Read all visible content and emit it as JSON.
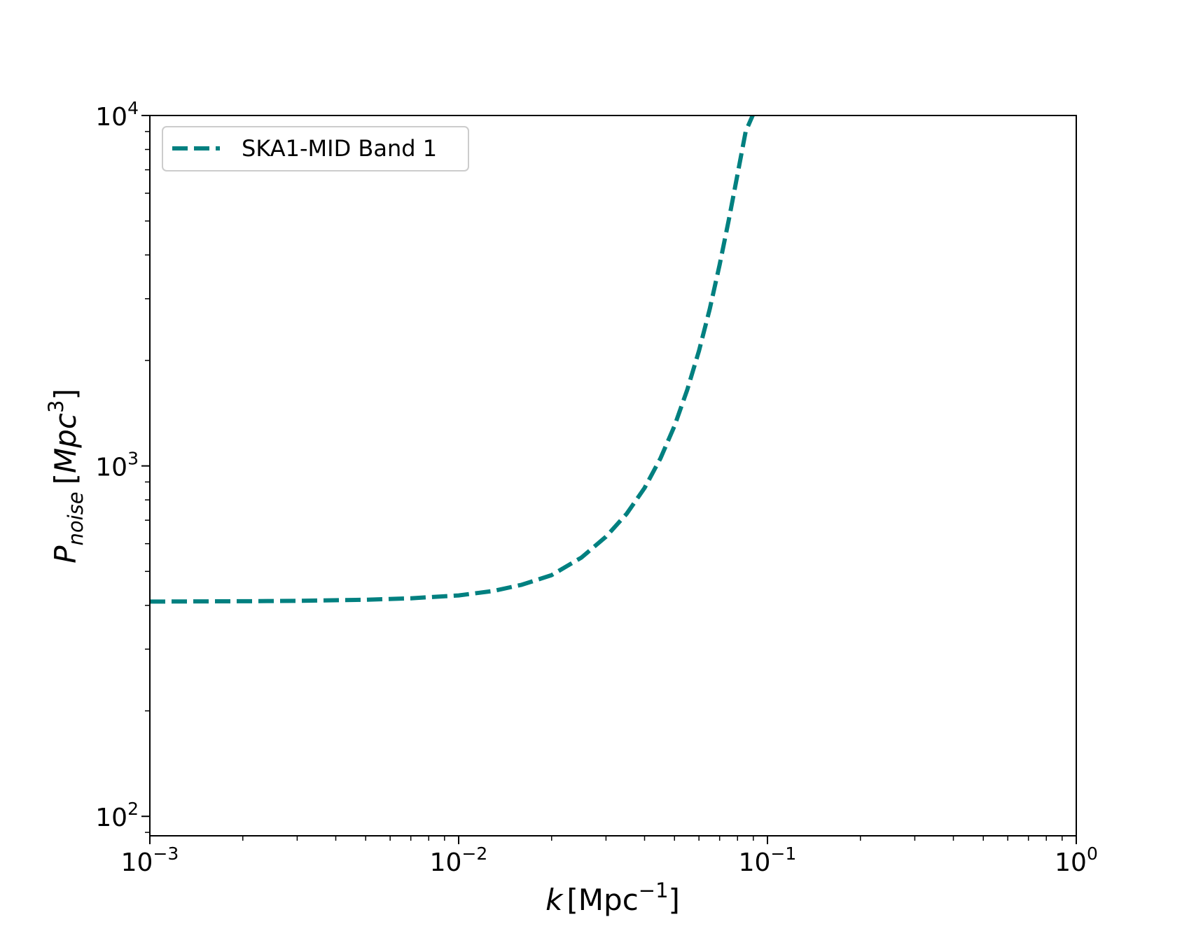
{
  "chart_data": {
    "type": "line",
    "xscale": "log",
    "yscale": "log",
    "xlim": [
      0.001,
      1
    ],
    "ylim": [
      88,
      10000
    ],
    "xlabel": {
      "var": "k",
      "unit": "[Mpc",
      "unit_exp": "−1",
      "close": "]"
    },
    "ylabel": {
      "var": "P",
      "sub": "noise",
      "open": "[",
      "unit": "Mpc",
      "unit_exp": "3",
      "close": "]"
    },
    "xticks": [
      {
        "value": 0.001,
        "base": "10",
        "exp": "−3"
      },
      {
        "value": 0.01,
        "base": "10",
        "exp": "−2"
      },
      {
        "value": 0.1,
        "base": "10",
        "exp": "−1"
      },
      {
        "value": 1,
        "base": "10",
        "exp": "0"
      }
    ],
    "yticks": [
      {
        "value": 100,
        "base": "10",
        "exp": "2"
      },
      {
        "value": 1000,
        "base": "10",
        "exp": "3"
      },
      {
        "value": 10000,
        "base": "10",
        "exp": "4"
      }
    ],
    "grid": false,
    "legend_position": "top-left",
    "series": [
      {
        "name": "SKA1-MID Band 1",
        "color": "#008080",
        "linestyle": "dashed",
        "x": [
          0.001,
          0.002,
          0.003,
          0.005,
          0.007,
          0.01,
          0.013,
          0.016,
          0.02,
          0.025,
          0.03,
          0.035,
          0.04,
          0.045,
          0.05,
          0.055,
          0.06,
          0.065,
          0.07,
          0.075,
          0.08,
          0.085,
          0.09
        ],
        "y": [
          410,
          411,
          412,
          415,
          419,
          427,
          440,
          458,
          488,
          548,
          628,
          730,
          865,
          1050,
          1300,
          1650,
          2130,
          2800,
          3750,
          5050,
          6800,
          9000,
          10100
        ]
      }
    ]
  }
}
